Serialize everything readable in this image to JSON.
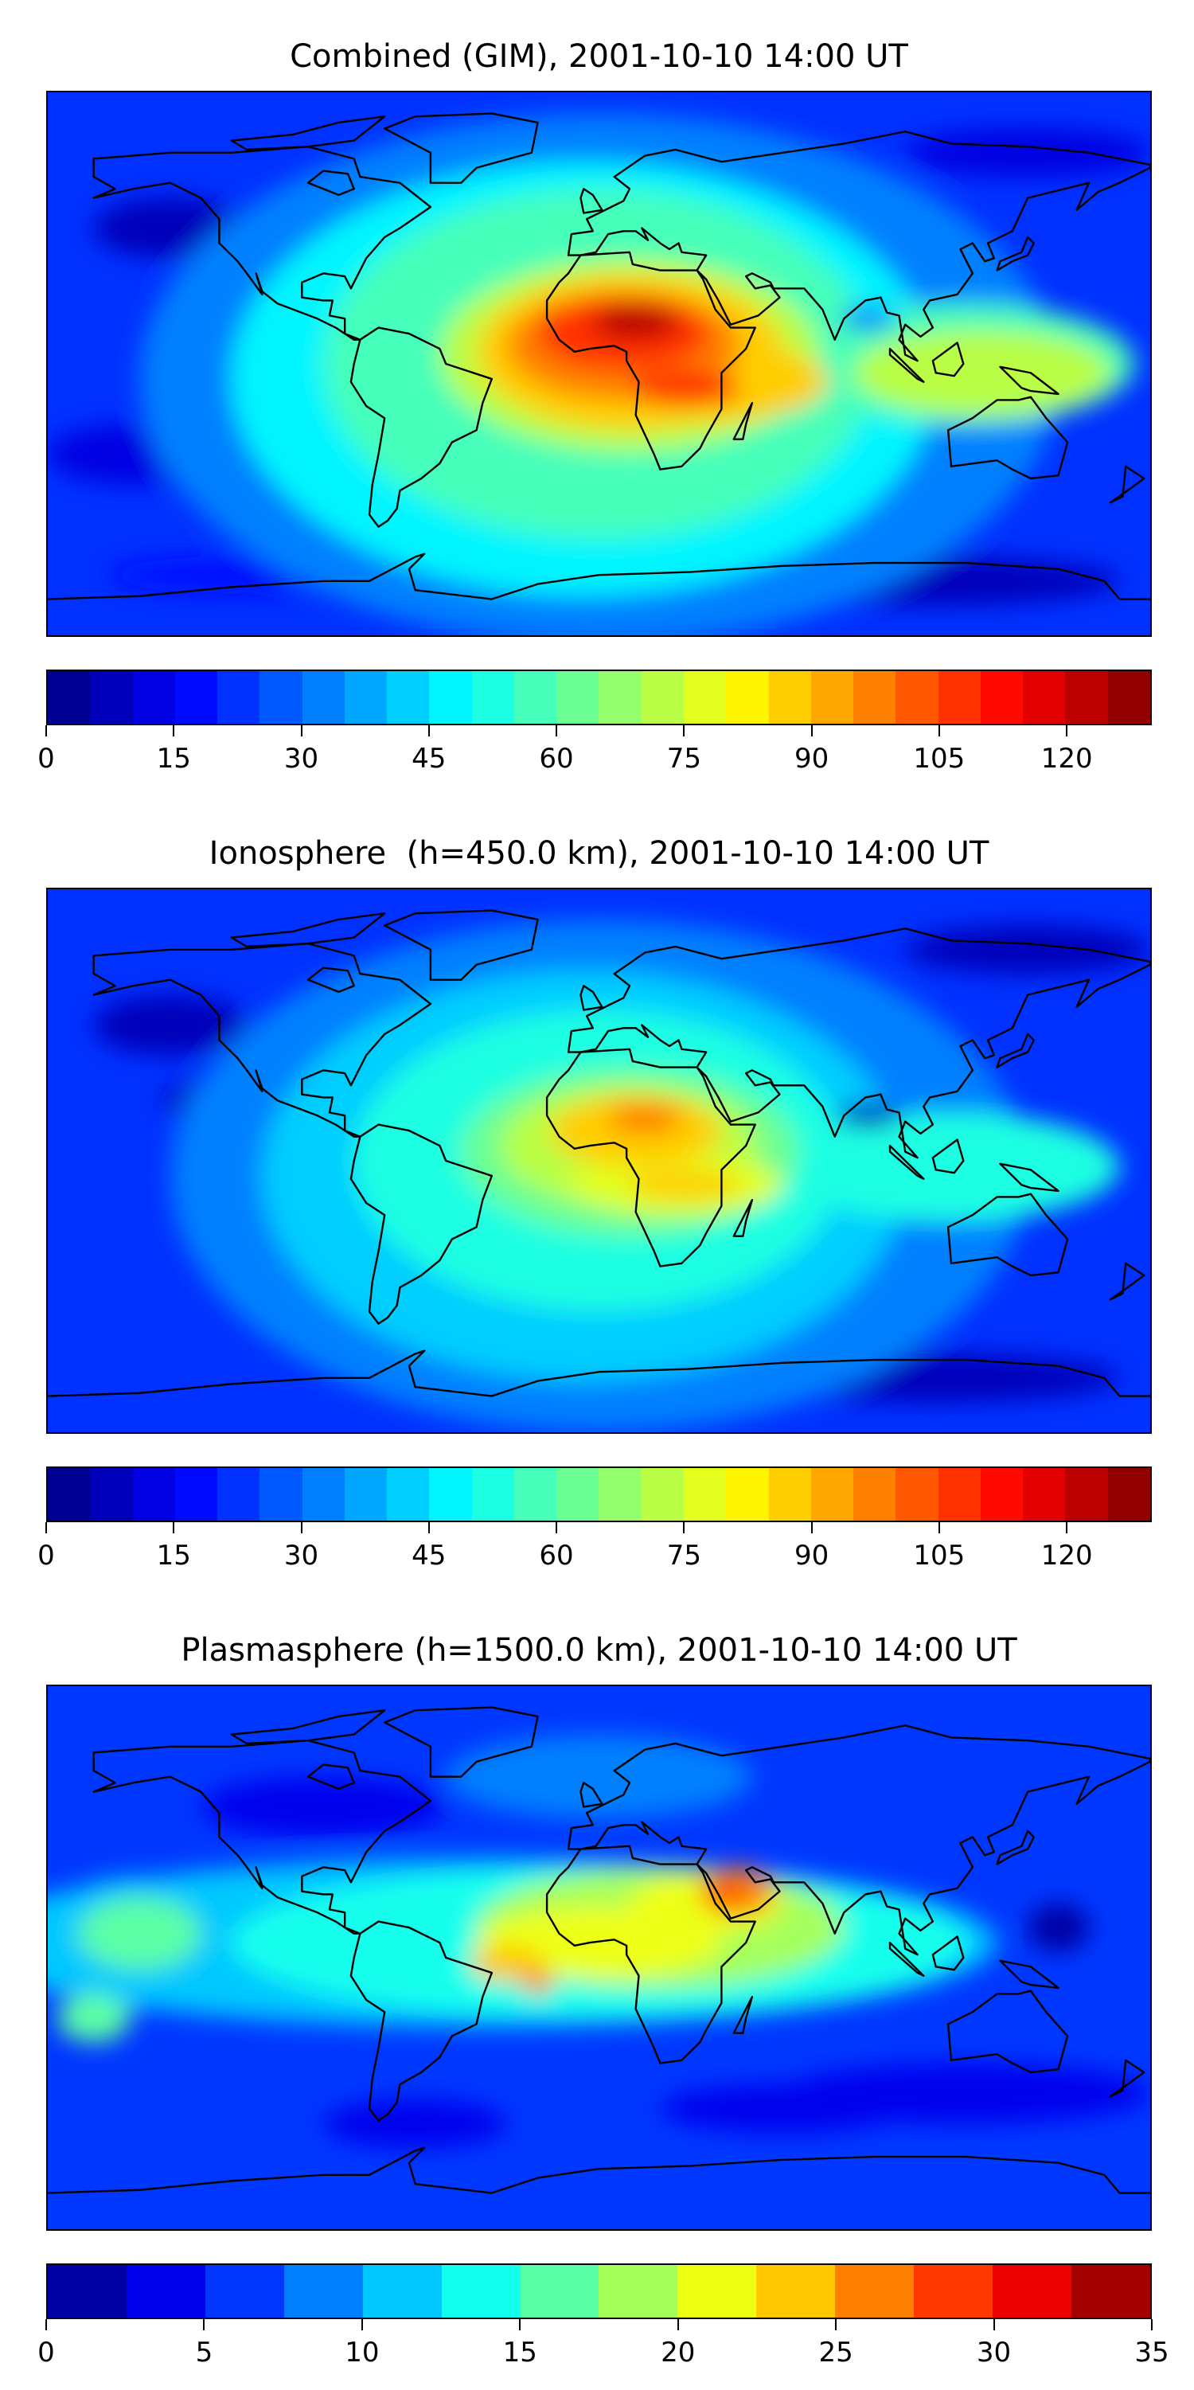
{
  "panels": [
    {
      "title": "Combined (GIM), 2001-10-10 14:00 UT",
      "colorbar": {
        "min": 0,
        "max": 130,
        "step": 5,
        "ticks": [
          "0",
          "15",
          "30",
          "45",
          "60",
          "75",
          "90",
          "105",
          "120"
        ],
        "tick_values": [
          0,
          15,
          30,
          45,
          60,
          75,
          90,
          105,
          120
        ]
      }
    },
    {
      "title": "Ionosphere  (h=450.0 km), 2001-10-10 14:00 UT",
      "colorbar": {
        "min": 0,
        "max": 130,
        "step": 5,
        "ticks": [
          "0",
          "15",
          "30",
          "45",
          "60",
          "75",
          "90",
          "105",
          "120"
        ],
        "tick_values": [
          0,
          15,
          30,
          45,
          60,
          75,
          90,
          105,
          120
        ]
      }
    },
    {
      "title": "Plasmasphere (h=1500.0 km), 2001-10-10 14:00 UT",
      "colorbar": {
        "min": 0,
        "max": 35,
        "step": 2.5,
        "ticks": [
          "0",
          "5",
          "10",
          "15",
          "20",
          "25",
          "30",
          "35"
        ],
        "tick_values": [
          0,
          5,
          10,
          15,
          20,
          25,
          30,
          35
        ]
      }
    }
  ],
  "colormap": "jet",
  "coastline_color": "#000000"
}
